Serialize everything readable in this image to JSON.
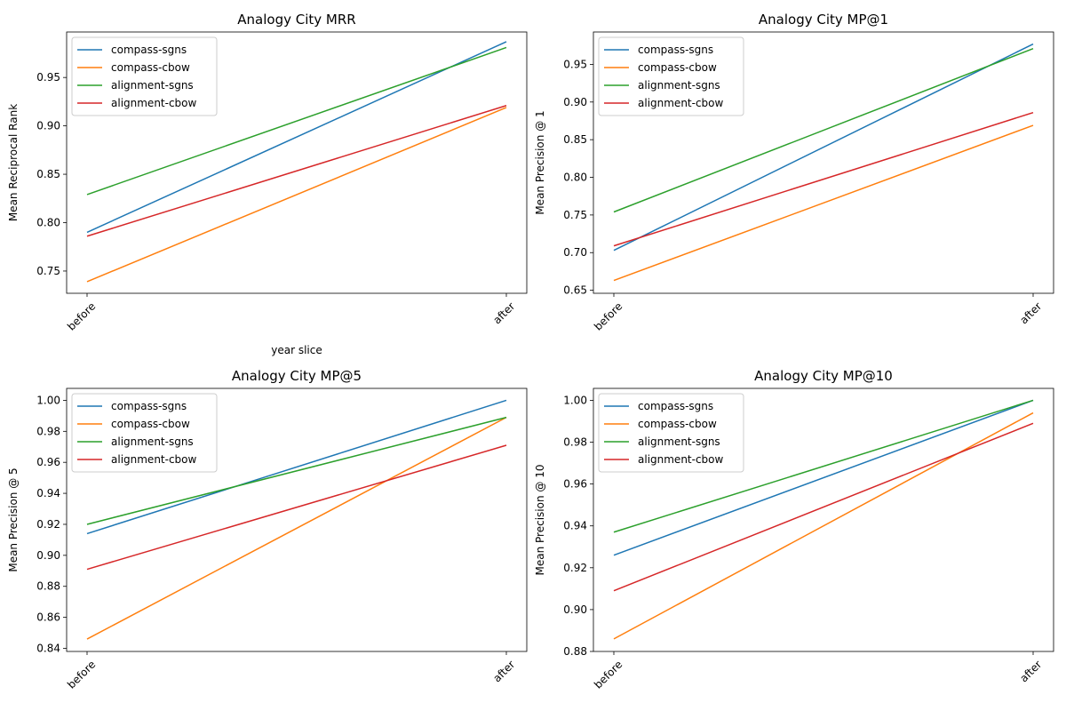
{
  "colors": {
    "compass-sgns": "#1f77b4",
    "compass-cbow": "#ff7f0e",
    "alignment-sgns": "#2ca02c",
    "alignment-cbow": "#d62728"
  },
  "chart_data": [
    {
      "type": "line",
      "title": "Analogy City MRR",
      "xlabel": "year slice",
      "ylabel": "Mean Reciprocal Rank",
      "categories": [
        "before",
        "after"
      ],
      "ylim": [
        0.727,
        0.997
      ],
      "yticks": [
        0.75,
        0.8,
        0.85,
        0.9,
        0.95
      ],
      "ytick_labels": [
        "0.75",
        "0.80",
        "0.85",
        "0.90",
        "0.95"
      ],
      "legend": "top-left",
      "grid": false,
      "series": [
        {
          "name": "compass-sgns",
          "values": [
            0.79,
            0.987
          ]
        },
        {
          "name": "compass-cbow",
          "values": [
            0.739,
            0.919
          ]
        },
        {
          "name": "alignment-sgns",
          "values": [
            0.829,
            0.981
          ]
        },
        {
          "name": "alignment-cbow",
          "values": [
            0.786,
            0.921
          ]
        }
      ]
    },
    {
      "type": "line",
      "title": "Analogy City MP@1",
      "xlabel": "",
      "ylabel": "Mean Precision @ 1",
      "categories": [
        "before",
        "after"
      ],
      "ylim": [
        0.646,
        0.993
      ],
      "yticks": [
        0.65,
        0.7,
        0.75,
        0.8,
        0.85,
        0.9,
        0.95
      ],
      "ytick_labels": [
        "0.65",
        "0.70",
        "0.75",
        "0.80",
        "0.85",
        "0.90",
        "0.95"
      ],
      "legend": "top-left",
      "grid": false,
      "series": [
        {
          "name": "compass-sgns",
          "values": [
            0.703,
            0.977
          ]
        },
        {
          "name": "compass-cbow",
          "values": [
            0.663,
            0.869
          ]
        },
        {
          "name": "alignment-sgns",
          "values": [
            0.754,
            0.971
          ]
        },
        {
          "name": "alignment-cbow",
          "values": [
            0.709,
            0.886
          ]
        }
      ]
    },
    {
      "type": "line",
      "title": "Analogy City MP@5",
      "xlabel": "",
      "ylabel": "Mean Precision @ 5",
      "categories": [
        "before",
        "after"
      ],
      "ylim": [
        0.838,
        1.0077
      ],
      "yticks": [
        0.84,
        0.86,
        0.88,
        0.9,
        0.92,
        0.94,
        0.96,
        0.98,
        1.0
      ],
      "ytick_labels": [
        "0.84",
        "0.86",
        "0.88",
        "0.90",
        "0.92",
        "0.94",
        "0.96",
        "0.98",
        "1.00"
      ],
      "legend": "top-left",
      "grid": false,
      "series": [
        {
          "name": "compass-sgns",
          "values": [
            0.914,
            1.0
          ]
        },
        {
          "name": "compass-cbow",
          "values": [
            0.846,
            0.989
          ]
        },
        {
          "name": "alignment-sgns",
          "values": [
            0.92,
            0.989
          ]
        },
        {
          "name": "alignment-cbow",
          "values": [
            0.891,
            0.971
          ]
        }
      ]
    },
    {
      "type": "line",
      "title": "Analogy City MP@10",
      "xlabel": "",
      "ylabel": "Mean Precision @ 10",
      "categories": [
        "before",
        "after"
      ],
      "ylim": [
        0.88,
        1.0057
      ],
      "yticks": [
        0.88,
        0.9,
        0.92,
        0.94,
        0.96,
        0.98,
        1.0
      ],
      "ytick_labels": [
        "0.88",
        "0.90",
        "0.92",
        "0.94",
        "0.96",
        "0.98",
        "1.00"
      ],
      "legend": "top-left",
      "grid": false,
      "series": [
        {
          "name": "compass-sgns",
          "values": [
            0.926,
            1.0
          ]
        },
        {
          "name": "compass-cbow",
          "values": [
            0.886,
            0.994
          ]
        },
        {
          "name": "alignment-sgns",
          "values": [
            0.937,
            1.0
          ]
        },
        {
          "name": "alignment-cbow",
          "values": [
            0.909,
            0.989
          ]
        }
      ]
    }
  ]
}
